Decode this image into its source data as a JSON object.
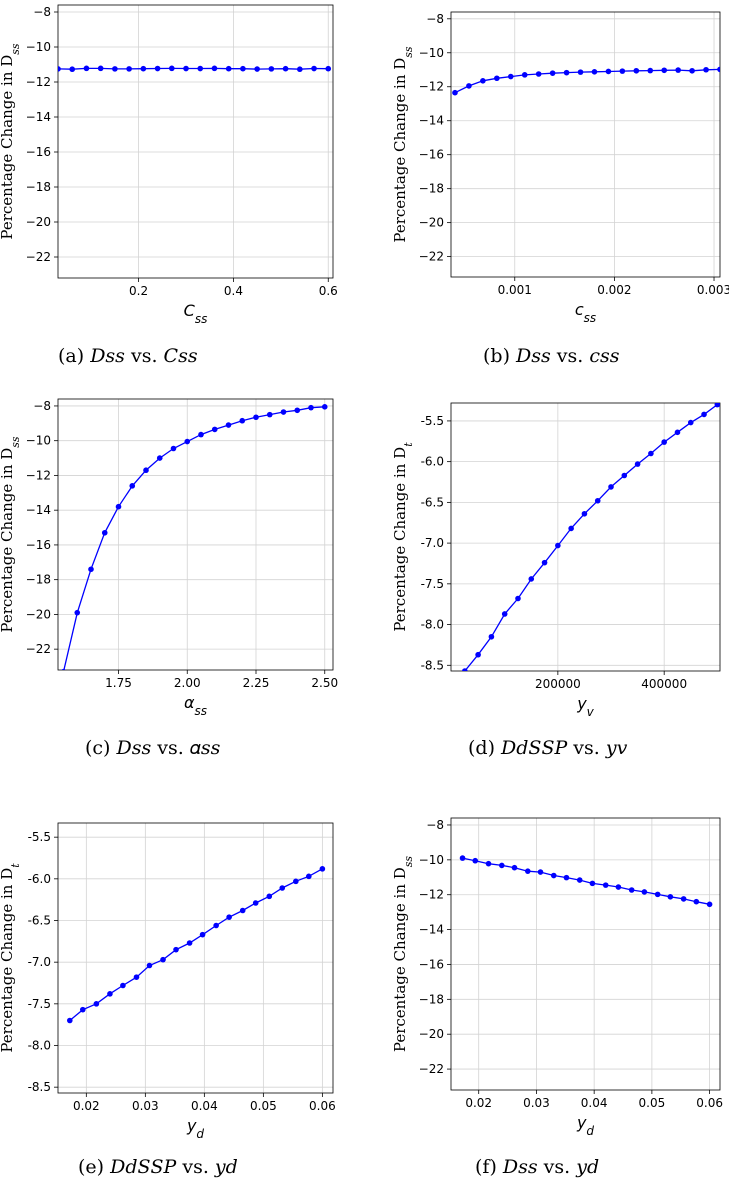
{
  "figure": {
    "panels": [
      {
        "id": "a",
        "caption": "(a) 𝐷𝑠𝑠 vs. 𝐶𝑠𝑠",
        "chart_data": {
          "type": "line",
          "ylabel": "Percentage Change in D",
          "ylabel_sub": "ss",
          "xlabel": "C",
          "xlabel_sub": "ss",
          "xlim": [
            0.03,
            0.61
          ],
          "ylim": [
            -23.2,
            -7.6
          ],
          "xticks": [
            0.2,
            0.4,
            0.6
          ],
          "xtick_labels": [
            "0.2",
            "0.4",
            "0.6"
          ],
          "yticks": [
            -8,
            -10,
            -12,
            -14,
            -16,
            -18,
            -20,
            -22
          ],
          "ytick_labels": [
            "−8",
            "−10",
            "−12",
            "−14",
            "−16",
            "−18",
            "−20",
            "−22"
          ],
          "grid": true,
          "series": [
            {
              "x": [
                0.03,
                0.06,
                0.09,
                0.12,
                0.15,
                0.18,
                0.21,
                0.24,
                0.27,
                0.3,
                0.33,
                0.36,
                0.39,
                0.42,
                0.45,
                0.48,
                0.51,
                0.54,
                0.57,
                0.6
              ],
              "y": [
                -11.25,
                -11.27,
                -11.22,
                -11.22,
                -11.25,
                -11.25,
                -11.24,
                -11.23,
                -11.22,
                -11.23,
                -11.23,
                -11.22,
                -11.24,
                -11.24,
                -11.26,
                -11.25,
                -11.24,
                -11.27,
                -11.23,
                -11.24
              ]
            }
          ]
        }
      },
      {
        "id": "b",
        "caption": "(b) 𝐷𝑠𝑠 vs. 𝑐𝑠𝑠",
        "chart_data": {
          "type": "line",
          "ylabel": "Percentage Change in D",
          "ylabel_sub": "ss",
          "xlabel": "c",
          "xlabel_sub": "ss",
          "xlim": [
            0.00036,
            0.00306
          ],
          "ylim": [
            -23.2,
            -7.6
          ],
          "xticks": [
            0.001,
            0.002,
            0.003
          ],
          "xtick_labels": [
            "0.001",
            "0.002",
            "0.003"
          ],
          "yticks": [
            -8,
            -10,
            -12,
            -14,
            -16,
            -18,
            -20,
            -22
          ],
          "ytick_labels": [
            "−8",
            "−10",
            "−12",
            "−14",
            "−16",
            "−18",
            "−20",
            "−22"
          ],
          "grid": true,
          "series": [
            {
              "x": [
                0.0004,
                0.00054,
                0.00068,
                0.00082,
                0.00096,
                0.0011,
                0.00124,
                0.00138,
                0.00152,
                0.00166,
                0.0018,
                0.00194,
                0.00208,
                0.00222,
                0.00236,
                0.0025,
                0.00264,
                0.00278,
                0.00292,
                0.00306
              ],
              "y": [
                -12.35,
                -11.95,
                -11.65,
                -11.5,
                -11.4,
                -11.3,
                -11.25,
                -11.2,
                -11.17,
                -11.14,
                -11.12,
                -11.1,
                -11.08,
                -11.06,
                -11.05,
                -11.03,
                -11.02,
                -11.06,
                -11.0,
                -10.98
              ]
            }
          ]
        }
      },
      {
        "id": "c",
        "caption": "(c) 𝐷𝑠𝑠 vs. 𝛼𝑠𝑠",
        "chart_data": {
          "type": "line",
          "ylabel": "Percentage Change in D",
          "ylabel_sub": "ss",
          "xlabel": "α",
          "xlabel_sub": "ss",
          "xlim": [
            1.53,
            2.53
          ],
          "ylim": [
            -23.2,
            -7.6
          ],
          "xticks": [
            1.75,
            2.0,
            2.25,
            2.5
          ],
          "xtick_labels": [
            "1.75",
            "2.00",
            "2.25",
            "2.50"
          ],
          "yticks": [
            -8,
            -10,
            -12,
            -14,
            -16,
            -18,
            -20,
            -22
          ],
          "ytick_labels": [
            "−8",
            "−10",
            "−12",
            "−14",
            "−16",
            "−18",
            "−20",
            "−22"
          ],
          "grid": true,
          "series": [
            {
              "x": [
                1.55,
                1.6,
                1.65,
                1.7,
                1.75,
                1.8,
                1.85,
                1.9,
                1.95,
                2.0,
                2.05,
                2.1,
                2.15,
                2.2,
                2.25,
                2.3,
                2.35,
                2.4,
                2.45,
                2.5
              ],
              "y": [
                -23.3,
                -19.9,
                -17.4,
                -15.3,
                -13.8,
                -12.6,
                -11.7,
                -11.0,
                -10.45,
                -10.05,
                -9.65,
                -9.35,
                -9.1,
                -8.85,
                -8.65,
                -8.5,
                -8.35,
                -8.25,
                -8.1,
                -8.05
              ]
            }
          ]
        }
      },
      {
        "id": "d",
        "caption": "(d) 𝐷𝑑𝑆𝑆𝑃 vs. 𝑦𝑣",
        "chart_data": {
          "type": "line",
          "ylabel": "Percentage Change in D",
          "ylabel_sub": "t",
          "xlabel": "y",
          "xlabel_sub": "v",
          "xlim": [
            -1000,
            505000
          ],
          "ylim": [
            -8.57,
            -5.28
          ],
          "xticks": [
            200000,
            400000
          ],
          "xtick_labels": [
            "200000",
            "400000"
          ],
          "yticks": [
            -5.5,
            -6.0,
            -6.5,
            -7.0,
            -7.5,
            -8.0,
            -8.5
          ],
          "ytick_labels": [
            "-5.5",
            "-6.0",
            "-6.5",
            "-7.0",
            "-7.5",
            "-8.0",
            "-8.5"
          ],
          "grid": true,
          "series": [
            {
              "x": [
                25000,
                50000,
                75000,
                100000,
                125000,
                150000,
                175000,
                200000,
                225000,
                250000,
                275000,
                300000,
                325000,
                350000,
                375000,
                400000,
                425000,
                450000,
                475000,
                500000
              ],
              "y": [
                -8.57,
                -8.37,
                -8.15,
                -7.87,
                -7.68,
                -7.44,
                -7.24,
                -7.03,
                -6.82,
                -6.64,
                -6.48,
                -6.31,
                -6.17,
                -6.03,
                -5.9,
                -5.76,
                -5.64,
                -5.52,
                -5.42,
                -5.3
              ]
            }
          ]
        }
      },
      {
        "id": "e",
        "caption": "(e) 𝐷𝑑𝑆𝑆𝑃 vs. 𝑦𝑑",
        "chart_data": {
          "type": "line",
          "ylabel": "Percentage Change in D",
          "ylabel_sub": "t",
          "xlabel": "y",
          "xlabel_sub": "d",
          "xlim": [
            0.0152,
            0.0618
          ],
          "ylim": [
            -8.57,
            -5.33
          ],
          "xticks": [
            0.02,
            0.03,
            0.04,
            0.05,
            0.06
          ],
          "xtick_labels": [
            "0.02",
            "0.03",
            "0.04",
            "0.05",
            "0.06"
          ],
          "yticks": [
            -5.5,
            -6.0,
            -6.5,
            -7.0,
            -7.5,
            -8.0,
            -8.5
          ],
          "ytick_labels": [
            "-5.5",
            "-6.0",
            "-6.5",
            "-7.0",
            "-7.5",
            "-8.0",
            "-8.5"
          ],
          "grid": true,
          "series": [
            {
              "x": [
                0.0172,
                0.0194,
                0.0217,
                0.024,
                0.0262,
                0.0285,
                0.0307,
                0.033,
                0.0352,
                0.0375,
                0.0397,
                0.042,
                0.0442,
                0.0465,
                0.0487,
                0.051,
                0.0532,
                0.0555,
                0.0577,
                0.06
              ],
              "y": [
                -7.7,
                -7.57,
                -7.5,
                -7.38,
                -7.28,
                -7.18,
                -7.04,
                -6.97,
                -6.85,
                -6.77,
                -6.67,
                -6.56,
                -6.46,
                -6.38,
                -6.29,
                -6.21,
                -6.11,
                -6.03,
                -5.97,
                -5.88
              ]
            }
          ]
        }
      },
      {
        "id": "f",
        "caption": "(f) 𝐷𝑠𝑠 vs. 𝑦𝑑",
        "chart_data": {
          "type": "line",
          "ylabel": "Percentage Change in D",
          "ylabel_sub": "ss",
          "xlabel": "y",
          "xlabel_sub": "d",
          "xlim": [
            0.0152,
            0.0618
          ],
          "ylim": [
            -23.2,
            -7.6
          ],
          "xticks": [
            0.02,
            0.03,
            0.04,
            0.05,
            0.06
          ],
          "xtick_labels": [
            "0.02",
            "0.03",
            "0.04",
            "0.05",
            "0.06"
          ],
          "yticks": [
            -8,
            -10,
            -12,
            -14,
            -16,
            -18,
            -20,
            -22
          ],
          "ytick_labels": [
            "−8",
            "−10",
            "−12",
            "−14",
            "−16",
            "−18",
            "−20",
            "−22"
          ],
          "grid": true,
          "series": [
            {
              "x": [
                0.0172,
                0.0194,
                0.0217,
                0.024,
                0.0262,
                0.0285,
                0.0307,
                0.033,
                0.0352,
                0.0375,
                0.0397,
                0.042,
                0.0442,
                0.0465,
                0.0487,
                0.051,
                0.0532,
                0.0555,
                0.0577,
                0.06
              ],
              "y": [
                -9.9,
                -10.05,
                -10.22,
                -10.32,
                -10.45,
                -10.65,
                -10.7,
                -10.9,
                -11.02,
                -11.16,
                -11.35,
                -11.45,
                -11.56,
                -11.73,
                -11.84,
                -11.98,
                -12.12,
                -12.24,
                -12.4,
                -12.55
              ]
            }
          ]
        }
      }
    ]
  }
}
